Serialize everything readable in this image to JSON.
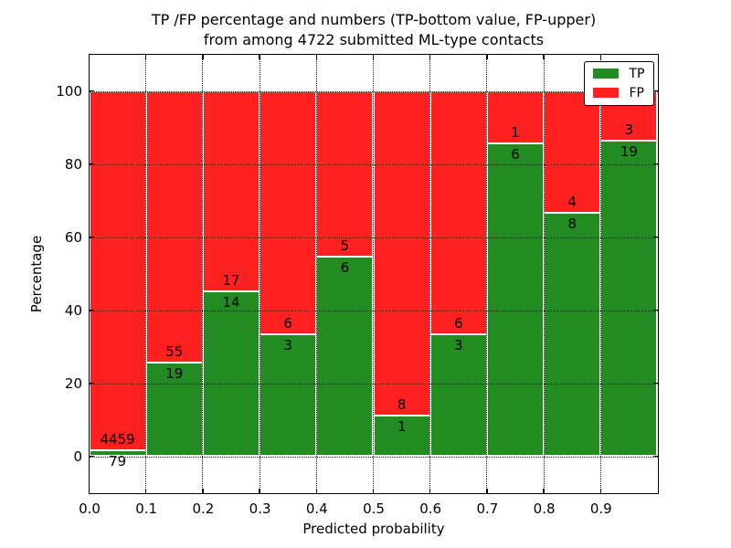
{
  "figure": {
    "title_line1": "TP /FP percentage and numbers (TP-bottom value, FP-upper)",
    "title_line2": "from among 4722 submitted ML-type contacts"
  },
  "axes": {
    "xlabel": "Predicted probability",
    "ylabel": "Percentage",
    "x_tick_labels": [
      "0.0",
      "0.1",
      "0.2",
      "0.3",
      "0.4",
      "0.5",
      "0.6",
      "0.7",
      "0.8",
      "0.9"
    ],
    "y_tick_labels": [
      "0",
      "20",
      "40",
      "60",
      "80",
      "100"
    ],
    "y_tick_values": [
      0,
      20,
      40,
      60,
      80,
      100
    ],
    "xlim": [
      0.0,
      1.0
    ],
    "ylim": [
      -10,
      110
    ],
    "grid": "dotted-black-both-axes"
  },
  "legend": {
    "position": "upper-right",
    "entries": [
      {
        "label": "TP",
        "color": "#228b22"
      },
      {
        "label": "FP",
        "color": "#ff2020"
      }
    ]
  },
  "colors": {
    "tp": "#228b22",
    "fp": "#ff2020",
    "bar_edge": "#ffffff",
    "spine": "#000000",
    "background": "#ffffff"
  },
  "chart_data": {
    "type": "bar",
    "stacked": true,
    "normalized_to": 100,
    "title": "TP /FP percentage and numbers (TP-bottom value, FP-upper) from among 4722 submitted ML-type contacts",
    "xlabel": "Predicted probability",
    "ylabel": "Percentage",
    "total_contacts": 4722,
    "bin_width": 0.1,
    "categories": [
      "0.0-0.1",
      "0.1-0.2",
      "0.2-0.3",
      "0.3-0.4",
      "0.4-0.5",
      "0.5-0.6",
      "0.6-0.7",
      "0.7-0.8",
      "0.8-0.9",
      "0.9-1.0"
    ],
    "series": [
      {
        "name": "TP",
        "counts": [
          79,
          19,
          14,
          3,
          6,
          1,
          3,
          6,
          8,
          19
        ],
        "pct": [
          1.7,
          25.7,
          45.2,
          33.3,
          54.5,
          11.1,
          33.3,
          85.7,
          66.7,
          86.4
        ]
      },
      {
        "name": "FP",
        "counts": [
          4459,
          55,
          17,
          6,
          5,
          8,
          6,
          1,
          4,
          3
        ],
        "pct": [
          98.3,
          74.3,
          54.8,
          66.7,
          45.5,
          88.9,
          66.7,
          14.3,
          33.3,
          13.6
        ]
      }
    ],
    "label_convention": "TP count below segment boundary, FP count above segment boundary"
  }
}
